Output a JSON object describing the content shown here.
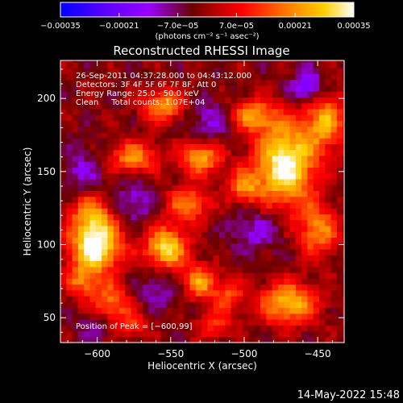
{
  "chart_data": {
    "type": "heatmap",
    "title": "Reconstructed RHESSI Image",
    "xlabel": "Heliocentric X (arcsec)",
    "ylabel": "Heliocentric Y (arcsec)",
    "xlim": [
      -625,
      -432
    ],
    "ylim": [
      33,
      226
    ],
    "x_ticks": [
      -600,
      -550,
      -500,
      -450
    ],
    "x_tick_labels": [
      "−600",
      "−550",
      "−500",
      "−450"
    ],
    "y_ticks": [
      50,
      100,
      150,
      200
    ],
    "y_tick_labels": [
      "50",
      "100",
      "150",
      "200"
    ],
    "colorbar": {
      "range": [
        -0.00035,
        0.00035
      ],
      "ticks": [
        -0.00035,
        -0.00021,
        -7e-05,
        7e-05,
        0.00021,
        0.00035
      ],
      "tick_labels": [
        "−0.00035",
        "−0.00021",
        "−7.0e−05",
        "7.0e−05",
        "0.00021",
        "0.00035"
      ],
      "units_label": "(photons cm⁻² s⁻¹ asec⁻²)"
    },
    "annotations": [
      "26-Sep-2011 04:37:28.000 to 04:43:12.000",
      "Detectors: 3F 4F 5F 6F 7F 8F, Att 0",
      "Energy Range: 25.0 - 50.0 keV",
      "Clean     Total counts: 1.07E+04"
    ],
    "peak_label": "Position of Peak = [−600,99]",
    "peak": [
      -600,
      99
    ],
    "sources": [
      {
        "x": -601,
        "y": 99,
        "sx": 12,
        "sy": 12,
        "a": 1.0
      },
      {
        "x": -604,
        "y": 122,
        "sx": 10,
        "sy": 10,
        "a": 0.55
      },
      {
        "x": -610,
        "y": 75,
        "sx": 8,
        "sy": 8,
        "a": 0.45
      },
      {
        "x": -590,
        "y": 60,
        "sx": 10,
        "sy": 10,
        "a": 0.5
      },
      {
        "x": -575,
        "y": 160,
        "sx": 12,
        "sy": 8,
        "a": 0.55
      },
      {
        "x": -555,
        "y": 195,
        "sx": 10,
        "sy": 8,
        "a": 0.6
      },
      {
        "x": -530,
        "y": 160,
        "sx": 10,
        "sy": 8,
        "a": 0.65
      },
      {
        "x": -538,
        "y": 128,
        "sx": 10,
        "sy": 8,
        "a": 0.55
      },
      {
        "x": -553,
        "y": 98,
        "sx": 10,
        "sy": 10,
        "a": 0.8
      },
      {
        "x": -531,
        "y": 75,
        "sx": 8,
        "sy": 8,
        "a": 0.6
      },
      {
        "x": -495,
        "y": 188,
        "sx": 12,
        "sy": 8,
        "a": 0.6
      },
      {
        "x": -500,
        "y": 140,
        "sx": 8,
        "sy": 8,
        "a": 0.5
      },
      {
        "x": -472,
        "y": 155,
        "sx": 14,
        "sy": 20,
        "a": 0.95
      },
      {
        "x": -445,
        "y": 185,
        "sx": 10,
        "sy": 14,
        "a": 0.6
      },
      {
        "x": -470,
        "y": 60,
        "sx": 14,
        "sy": 10,
        "a": 0.7
      },
      {
        "x": -450,
        "y": 110,
        "sx": 10,
        "sy": 12,
        "a": 0.55
      },
      {
        "x": -512,
        "y": 65,
        "sx": 8,
        "sy": 8,
        "a": 0.4
      },
      {
        "x": -575,
        "y": 45,
        "sx": 8,
        "sy": 6,
        "a": 0.3
      },
      {
        "x": -520,
        "y": 45,
        "sx": 8,
        "sy": 6,
        "a": 0.35
      }
    ],
    "negatives": [
      {
        "x": -520,
        "y": 185,
        "sx": 14,
        "sy": 10,
        "a": 0.55
      },
      {
        "x": -457,
        "y": 208,
        "sx": 8,
        "sy": 8,
        "a": 0.9
      },
      {
        "x": -575,
        "y": 130,
        "sx": 10,
        "sy": 10,
        "a": 0.55
      },
      {
        "x": -490,
        "y": 110,
        "sx": 14,
        "sy": 10,
        "a": 0.5
      },
      {
        "x": -610,
        "y": 150,
        "sx": 10,
        "sy": 12,
        "a": 0.45
      },
      {
        "x": -560,
        "y": 70,
        "sx": 12,
        "sy": 10,
        "a": 0.4
      },
      {
        "x": -600,
        "y": 45,
        "sx": 10,
        "sy": 8,
        "a": 0.35
      }
    ]
  },
  "footer": {
    "timestamp": "14-May-2022 15:48"
  }
}
